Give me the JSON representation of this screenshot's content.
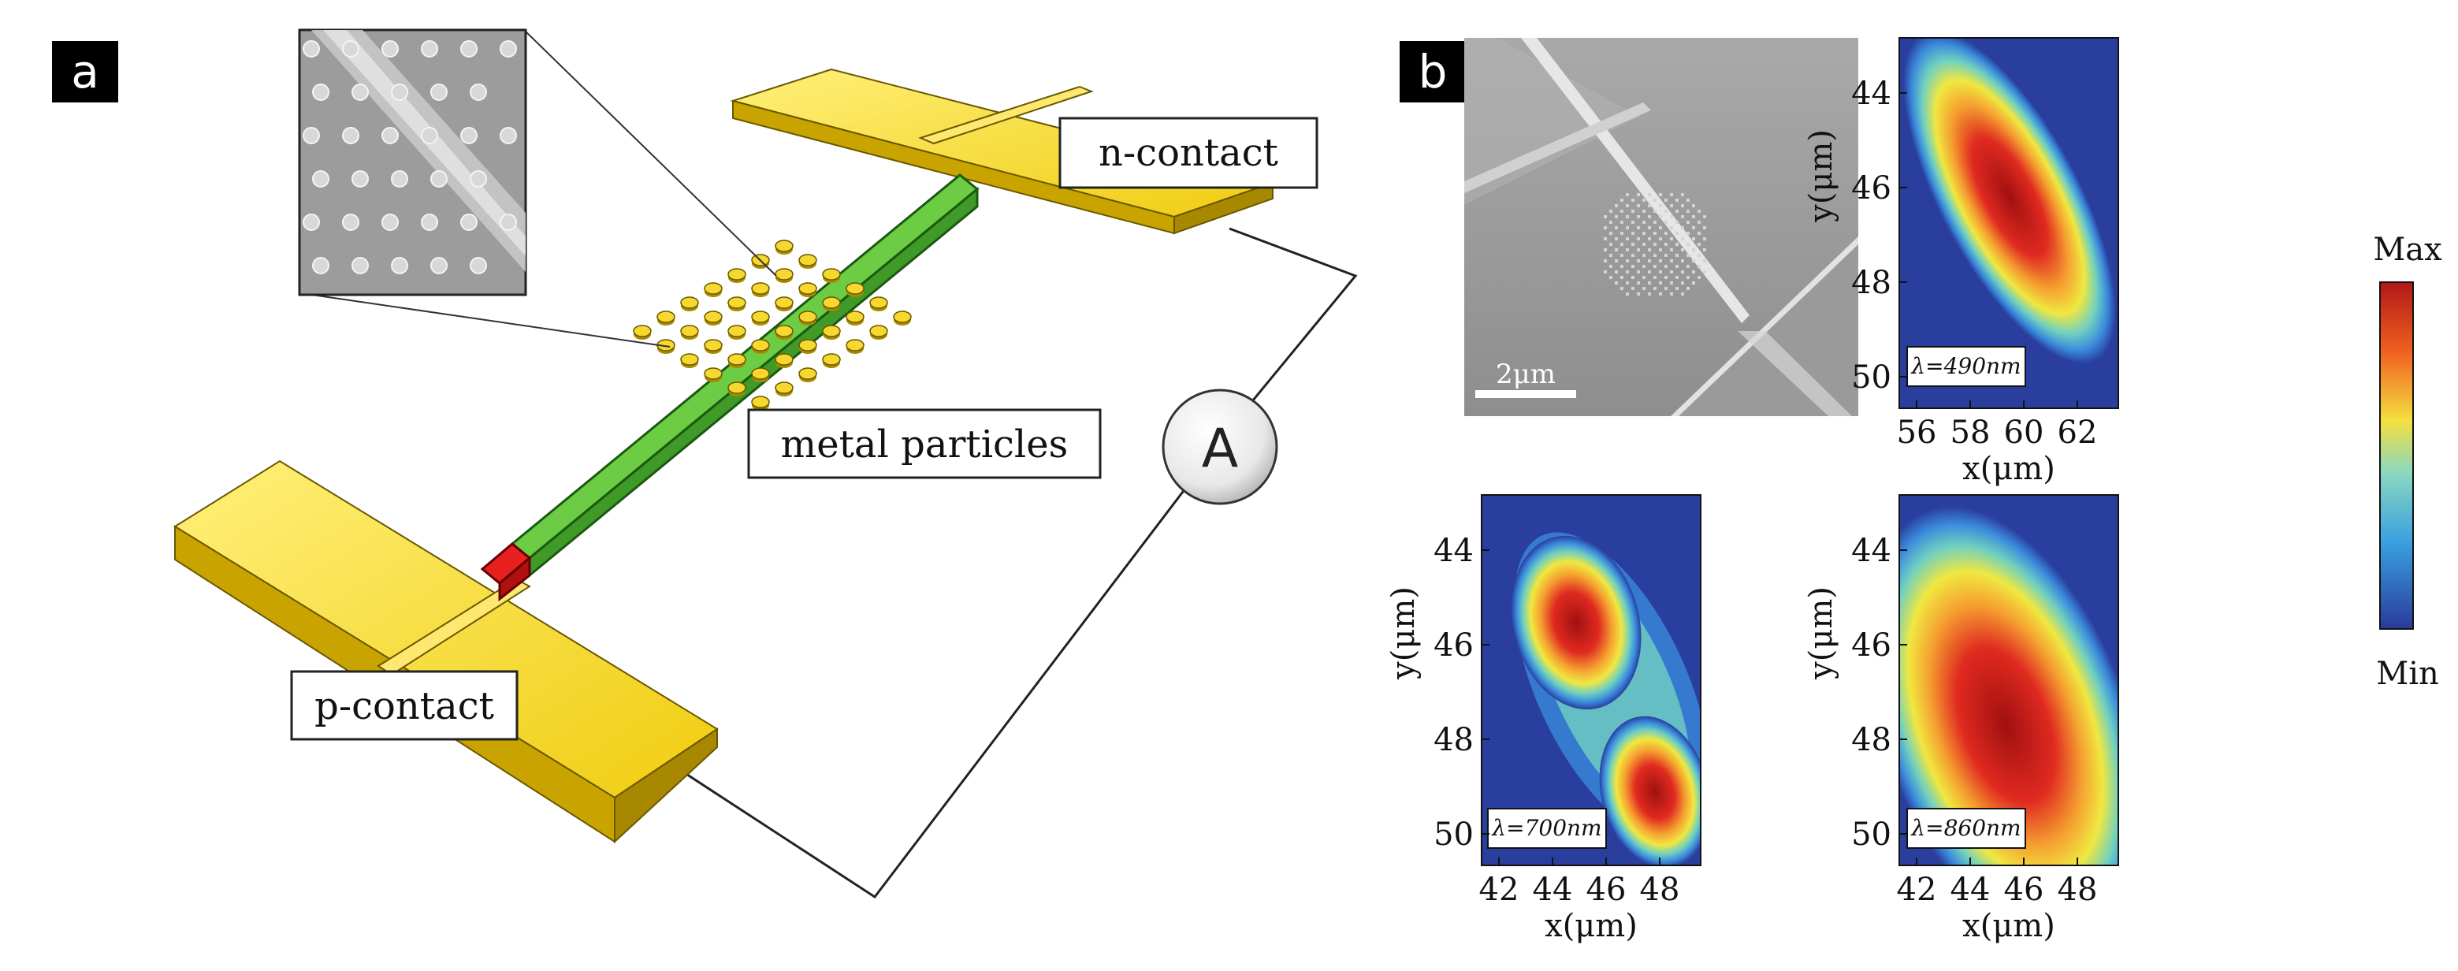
{
  "panel_a": {
    "tag": "a",
    "labels": {
      "n_contact": "n-contact",
      "p_contact": "p-contact",
      "metal_particles": "metal particles",
      "ammeter": "A"
    }
  },
  "panel_b": {
    "tag": "b",
    "sem_scale_bar": "2μm",
    "colorbar": {
      "max_label": "Max",
      "min_label": "Min"
    },
    "maps": [
      {
        "wavelength_label": "λ=490nm",
        "xlabel": "x(μm)",
        "ylabel": "y(μm)",
        "x_ticks": [
          "56",
          "58",
          "60",
          "62"
        ],
        "y_ticks": [
          "44",
          "46",
          "48",
          "50"
        ]
      },
      {
        "wavelength_label": "λ=700nm",
        "xlabel": "x(μm)",
        "ylabel": "y(μm)",
        "x_ticks": [
          "42",
          "44",
          "46",
          "48"
        ],
        "y_ticks": [
          "44",
          "46",
          "48",
          "50"
        ]
      },
      {
        "wavelength_label": "λ=860nm",
        "xlabel": "x(μm)",
        "ylabel": "y(μm)",
        "x_ticks": [
          "42",
          "44",
          "46",
          "48"
        ],
        "y_ticks": [
          "44",
          "46",
          "48",
          "50"
        ]
      }
    ]
  },
  "colors": {
    "gold": "#f0d020",
    "nanowire_green": "#5bbf3c",
    "nanowire_red": "#e02020",
    "map_background": "#2a3e9e"
  }
}
